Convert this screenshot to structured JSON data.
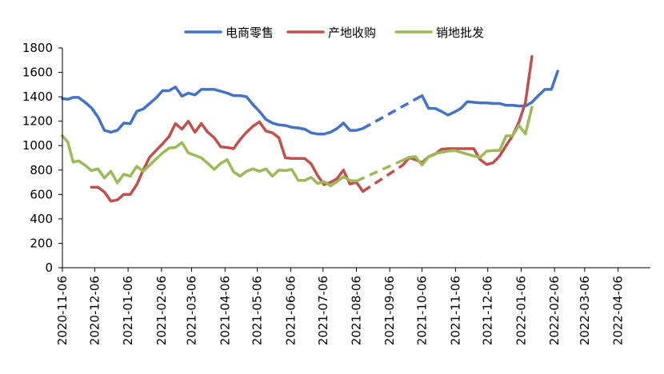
{
  "chart_data": {
    "type": "line",
    "title": "",
    "xlabel": "",
    "ylabel": "",
    "ylim": [
      0,
      1800
    ],
    "yticks": [
      0,
      200,
      400,
      600,
      800,
      1000,
      1200,
      1400,
      1600,
      1800
    ],
    "x_range": [
      "2020-11-06",
      "2022-05-06"
    ],
    "xticks": [
      "2020-11-06",
      "2020-12-06",
      "2021-01-06",
      "2021-02-06",
      "2021-03-06",
      "2021-04-06",
      "2021-05-06",
      "2021-06-06",
      "2021-07-06",
      "2021-08-06",
      "2021-09-06",
      "2021-10-06",
      "2021-11-06",
      "2021-12-06",
      "2022-01-06",
      "2022-02-06",
      "2022-03-06",
      "2022-04-06"
    ],
    "legend_position": "top",
    "grid": false,
    "series": [
      {
        "name": "电商零售",
        "color": "#4472C4",
        "segments": [
          {
            "style": "solid",
            "points": [
              [
                "2020-11-06",
                1385
              ],
              [
                "2020-11-11",
                1380
              ],
              [
                "2020-11-16",
                1395
              ],
              [
                "2020-11-21",
                1395
              ],
              [
                "2020-11-27",
                1355
              ],
              [
                "2020-12-03",
                1310
              ],
              [
                "2020-12-09",
                1235
              ],
              [
                "2020-12-15",
                1125
              ],
              [
                "2020-12-21",
                1110
              ],
              [
                "2020-12-27",
                1125
              ],
              [
                "2021-01-02",
                1185
              ],
              [
                "2021-01-08",
                1180
              ],
              [
                "2021-01-14",
                1280
              ],
              [
                "2021-01-20",
                1300
              ],
              [
                "2021-01-26",
                1345
              ],
              [
                "2021-02-01",
                1390
              ],
              [
                "2021-02-07",
                1450
              ],
              [
                "2021-02-13",
                1450
              ],
              [
                "2021-02-19",
                1480
              ],
              [
                "2021-02-25",
                1405
              ],
              [
                "2021-03-03",
                1430
              ],
              [
                "2021-03-09",
                1415
              ],
              [
                "2021-03-15",
                1460
              ],
              [
                "2021-03-21",
                1460
              ],
              [
                "2021-03-27",
                1460
              ],
              [
                "2021-04-02",
                1445
              ],
              [
                "2021-04-08",
                1430
              ],
              [
                "2021-04-14",
                1410
              ],
              [
                "2021-04-20",
                1410
              ],
              [
                "2021-04-26",
                1400
              ],
              [
                "2021-05-02",
                1335
              ],
              [
                "2021-05-08",
                1280
              ],
              [
                "2021-05-14",
                1215
              ],
              [
                "2021-05-20",
                1185
              ],
              [
                "2021-05-26",
                1170
              ],
              [
                "2021-06-01",
                1165
              ],
              [
                "2021-06-07",
                1150
              ],
              [
                "2021-06-13",
                1145
              ],
              [
                "2021-06-19",
                1135
              ],
              [
                "2021-06-25",
                1105
              ],
              [
                "2021-07-01",
                1095
              ],
              [
                "2021-07-07",
                1095
              ],
              [
                "2021-07-13",
                1110
              ],
              [
                "2021-07-19",
                1140
              ],
              [
                "2021-07-25",
                1185
              ],
              [
                "2021-07-31",
                1125
              ],
              [
                "2021-08-06",
                1125
              ],
              [
                "2021-08-12",
                1140
              ]
            ]
          },
          {
            "style": "dashed",
            "points": [
              [
                "2021-08-12",
                1140
              ],
              [
                "2021-10-06",
                1410
              ]
            ]
          },
          {
            "style": "solid",
            "points": [
              [
                "2021-10-06",
                1410
              ],
              [
                "2021-10-12",
                1305
              ],
              [
                "2021-10-18",
                1305
              ],
              [
                "2021-10-24",
                1280
              ],
              [
                "2021-10-30",
                1250
              ],
              [
                "2021-11-05",
                1275
              ],
              [
                "2021-11-11",
                1305
              ],
              [
                "2021-11-17",
                1360
              ],
              [
                "2021-11-23",
                1355
              ],
              [
                "2021-11-29",
                1350
              ],
              [
                "2021-12-05",
                1350
              ],
              [
                "2021-12-11",
                1345
              ],
              [
                "2021-12-17",
                1345
              ],
              [
                "2021-12-23",
                1330
              ],
              [
                "2021-12-29",
                1330
              ],
              [
                "2022-01-04",
                1325
              ],
              [
                "2022-01-10",
                1325
              ],
              [
                "2022-01-16",
                1355
              ],
              [
                "2022-01-22",
                1410
              ],
              [
                "2022-01-28",
                1460
              ],
              [
                "2022-02-03",
                1460
              ],
              [
                "2022-02-09",
                1610
              ]
            ]
          }
        ]
      },
      {
        "name": "产地收购",
        "color": "#C0504D",
        "segments": [
          {
            "style": "solid",
            "points": [
              [
                "2020-12-03",
                660
              ],
              [
                "2020-12-09",
                660
              ],
              [
                "2020-12-15",
                620
              ],
              [
                "2020-12-21",
                545
              ],
              [
                "2020-12-27",
                555
              ],
              [
                "2021-01-02",
                600
              ],
              [
                "2021-01-08",
                600
              ],
              [
                "2021-01-14",
                680
              ],
              [
                "2021-01-20",
                800
              ],
              [
                "2021-01-26",
                905
              ],
              [
                "2021-02-01",
                960
              ],
              [
                "2021-02-07",
                1015
              ],
              [
                "2021-02-13",
                1075
              ],
              [
                "2021-02-19",
                1180
              ],
              [
                "2021-02-25",
                1135
              ],
              [
                "2021-03-03",
                1200
              ],
              [
                "2021-03-09",
                1110
              ],
              [
                "2021-03-15",
                1180
              ],
              [
                "2021-03-21",
                1110
              ],
              [
                "2021-03-27",
                1065
              ],
              [
                "2021-04-02",
                990
              ],
              [
                "2021-04-08",
                985
              ],
              [
                "2021-04-14",
                975
              ],
              [
                "2021-04-20",
                1050
              ],
              [
                "2021-04-26",
                1110
              ],
              [
                "2021-05-02",
                1160
              ],
              [
                "2021-05-08",
                1195
              ],
              [
                "2021-05-14",
                1120
              ],
              [
                "2021-05-20",
                1105
              ],
              [
                "2021-05-26",
                1065
              ],
              [
                "2021-06-01",
                900
              ],
              [
                "2021-06-07",
                895
              ],
              [
                "2021-06-13",
                895
              ],
              [
                "2021-06-19",
                895
              ],
              [
                "2021-06-25",
                850
              ],
              [
                "2021-07-01",
                755
              ],
              [
                "2021-07-07",
                680
              ],
              [
                "2021-07-13",
                700
              ],
              [
                "2021-07-19",
                730
              ],
              [
                "2021-07-25",
                800
              ],
              [
                "2021-07-31",
                685
              ],
              [
                "2021-08-06",
                700
              ],
              [
                "2021-08-12",
                625
              ]
            ]
          },
          {
            "style": "dashed",
            "points": [
              [
                "2021-08-12",
                625
              ],
              [
                "2021-09-18",
                840
              ]
            ]
          },
          {
            "style": "solid",
            "points": [
              [
                "2021-09-18",
                840
              ],
              [
                "2021-09-24",
                900
              ],
              [
                "2021-09-30",
                885
              ],
              [
                "2021-10-06",
                860
              ],
              [
                "2021-10-12",
                910
              ],
              [
                "2021-10-18",
                930
              ],
              [
                "2021-10-24",
                970
              ],
              [
                "2021-10-30",
                975
              ],
              [
                "2021-11-05",
                975
              ],
              [
                "2021-11-11",
                975
              ],
              [
                "2021-11-17",
                975
              ],
              [
                "2021-11-23",
                975
              ],
              [
                "2021-11-29",
                885
              ],
              [
                "2021-12-05",
                845
              ],
              [
                "2021-12-11",
                860
              ],
              [
                "2021-12-17",
                915
              ],
              [
                "2021-12-23",
                1000
              ],
              [
                "2021-12-29",
                1080
              ],
              [
                "2022-01-04",
                1195
              ],
              [
                "2022-01-10",
                1355
              ],
              [
                "2022-01-16",
                1730
              ]
            ]
          }
        ]
      },
      {
        "name": "销地批发",
        "color": "#9BBB59",
        "segments": [
          {
            "style": "solid",
            "points": [
              [
                "2020-11-06",
                1080
              ],
              [
                "2020-11-11",
                1030
              ],
              [
                "2020-11-16",
                865
              ],
              [
                "2020-11-21",
                875
              ],
              [
                "2020-11-27",
                840
              ],
              [
                "2020-12-03",
                795
              ],
              [
                "2020-12-09",
                810
              ],
              [
                "2020-12-15",
                735
              ],
              [
                "2020-12-21",
                790
              ],
              [
                "2020-12-27",
                695
              ],
              [
                "2021-01-02",
                765
              ],
              [
                "2021-01-08",
                750
              ],
              [
                "2021-01-14",
                830
              ],
              [
                "2021-01-20",
                790
              ],
              [
                "2021-01-26",
                840
              ],
              [
                "2021-02-01",
                890
              ],
              [
                "2021-02-07",
                940
              ],
              [
                "2021-02-13",
                980
              ],
              [
                "2021-02-19",
                985
              ],
              [
                "2021-02-25",
                1025
              ],
              [
                "2021-03-03",
                940
              ],
              [
                "2021-03-09",
                920
              ],
              [
                "2021-03-15",
                900
              ],
              [
                "2021-03-21",
                855
              ],
              [
                "2021-03-27",
                805
              ],
              [
                "2021-04-02",
                855
              ],
              [
                "2021-04-08",
                885
              ],
              [
                "2021-04-14",
                785
              ],
              [
                "2021-04-20",
                750
              ],
              [
                "2021-04-26",
                790
              ],
              [
                "2021-05-02",
                810
              ],
              [
                "2021-05-08",
                790
              ],
              [
                "2021-05-14",
                810
              ],
              [
                "2021-05-20",
                750
              ],
              [
                "2021-05-26",
                800
              ],
              [
                "2021-06-01",
                795
              ],
              [
                "2021-06-07",
                805
              ],
              [
                "2021-06-13",
                715
              ],
              [
                "2021-06-19",
                715
              ],
              [
                "2021-06-25",
                740
              ],
              [
                "2021-07-01",
                690
              ],
              [
                "2021-07-07",
                705
              ],
              [
                "2021-07-13",
                670
              ],
              [
                "2021-07-19",
                705
              ],
              [
                "2021-07-25",
                745
              ],
              [
                "2021-07-31",
                715
              ],
              [
                "2021-08-06",
                710
              ]
            ]
          },
          {
            "style": "dashed",
            "points": [
              [
                "2021-08-06",
                710
              ],
              [
                "2021-09-18",
                880
              ]
            ]
          },
          {
            "style": "solid",
            "points": [
              [
                "2021-09-18",
                880
              ],
              [
                "2021-09-24",
                905
              ],
              [
                "2021-09-30",
                910
              ],
              [
                "2021-10-06",
                840
              ],
              [
                "2021-10-12",
                910
              ],
              [
                "2021-10-18",
                935
              ],
              [
                "2021-10-24",
                945
              ],
              [
                "2021-10-30",
                955
              ],
              [
                "2021-11-05",
                960
              ],
              [
                "2021-11-11",
                945
              ],
              [
                "2021-11-17",
                930
              ],
              [
                "2021-11-23",
                915
              ],
              [
                "2021-11-29",
                905
              ],
              [
                "2021-12-05",
                955
              ],
              [
                "2021-12-11",
                960
              ],
              [
                "2021-12-17",
                960
              ],
              [
                "2021-12-23",
                1080
              ],
              [
                "2021-12-29",
                1080
              ],
              [
                "2022-01-04",
                1165
              ],
              [
                "2022-01-10",
                1095
              ],
              [
                "2022-01-16",
                1315
              ]
            ]
          }
        ]
      }
    ]
  }
}
